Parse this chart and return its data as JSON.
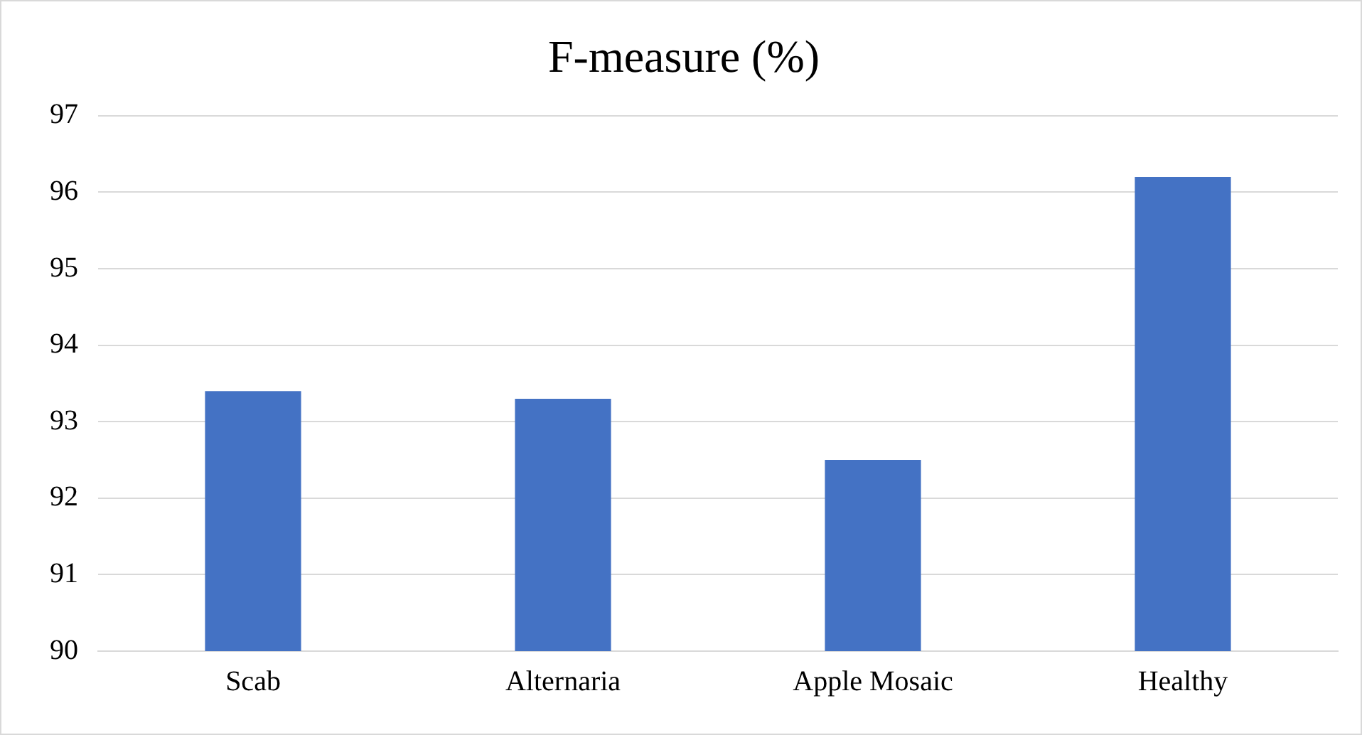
{
  "chart_data": {
    "type": "bar",
    "title": "F-measure (%)",
    "categories": [
      "Scab",
      "Alternaria",
      "Apple Mosaic",
      "Healthy"
    ],
    "values": [
      93.4,
      93.3,
      92.5,
      96.2
    ],
    "color": "#4472c4",
    "ylim": [
      90,
      97
    ],
    "yticks": [
      90,
      91,
      92,
      93,
      94,
      95,
      96,
      97
    ],
    "grid": "y",
    "legend": false
  }
}
